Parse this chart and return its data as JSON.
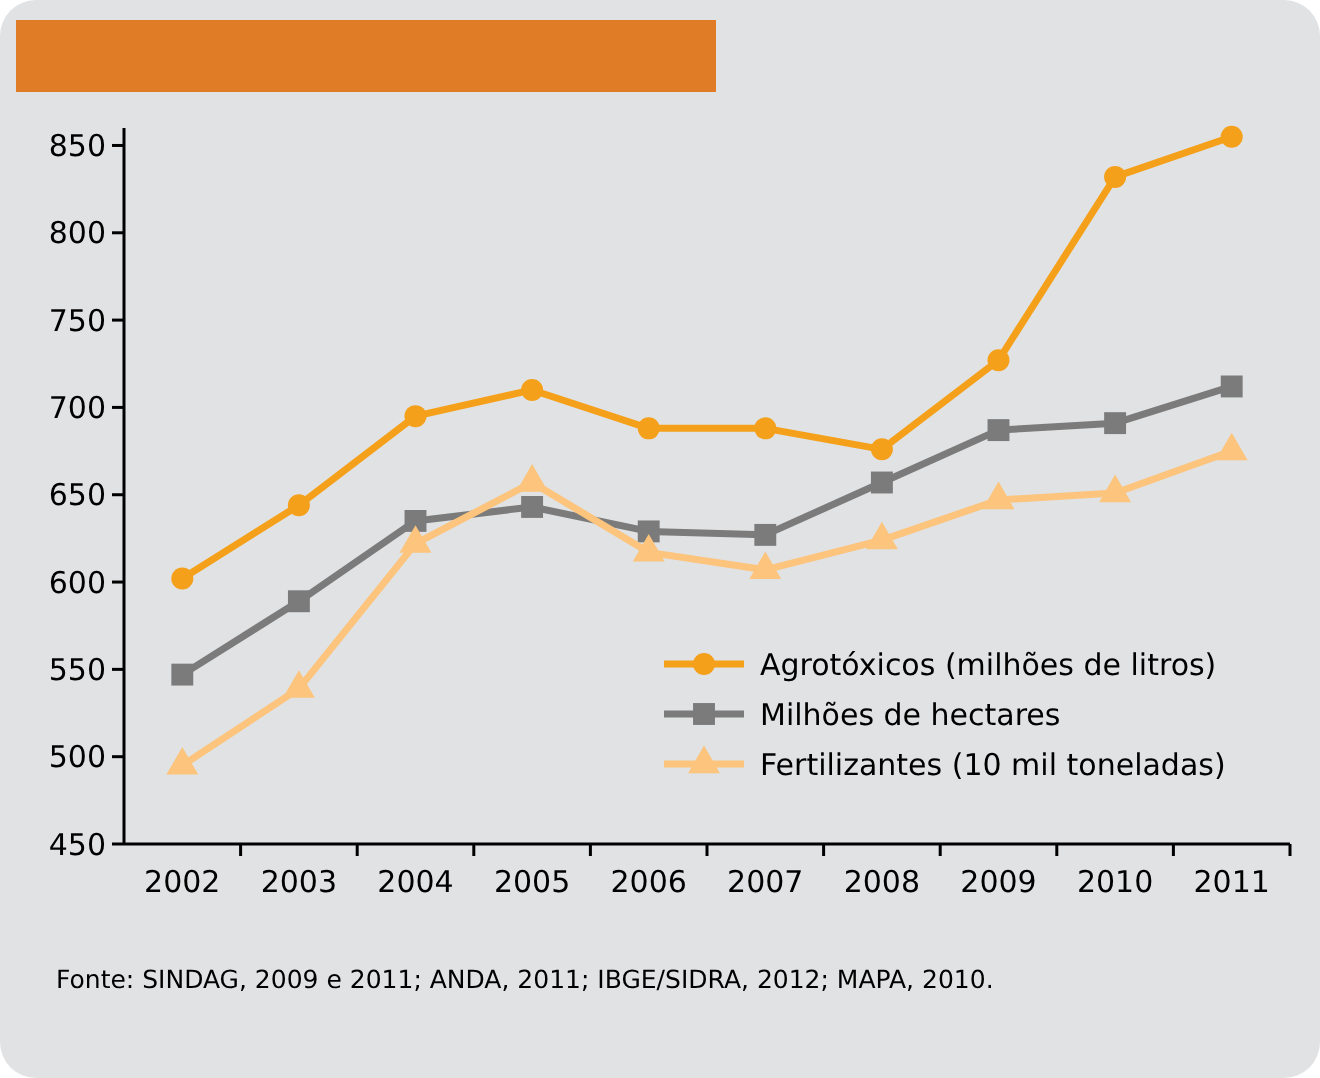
{
  "chart_data": {
    "type": "line",
    "categories": [
      "2002",
      "2003",
      "2004",
      "2005",
      "2006",
      "2007",
      "2008",
      "2009",
      "2010",
      "2011"
    ],
    "series": [
      {
        "name": "Agrotóxicos (milhões de litros)",
        "color": "#f5a01a",
        "marker": "circle",
        "values": [
          602,
          644,
          695,
          710,
          688,
          688,
          676,
          727,
          832,
          855
        ]
      },
      {
        "name": "Milhões de hectares",
        "color": "#7b7b7b",
        "marker": "square",
        "values": [
          547,
          589,
          635,
          643,
          629,
          627,
          657,
          687,
          691,
          712
        ]
      },
      {
        "name": "Fertilizantes (10 mil toneladas)",
        "color": "#fcc47c",
        "marker": "triangle",
        "values": [
          495,
          539,
          622,
          657,
          617,
          607,
          624,
          647,
          651,
          675
        ]
      }
    ],
    "ylim": [
      450,
      860
    ],
    "yticks": [
      450,
      500,
      550,
      600,
      650,
      700,
      750,
      800,
      850
    ],
    "grid": false,
    "legend": "bottom right",
    "line_style": "solid",
    "annotations": [
      "Fonte: SINDAG, 2009 e 2011;  ANDA, 2011; IBGE/SIDRA, 2012; MAPA, 2010."
    ]
  }
}
